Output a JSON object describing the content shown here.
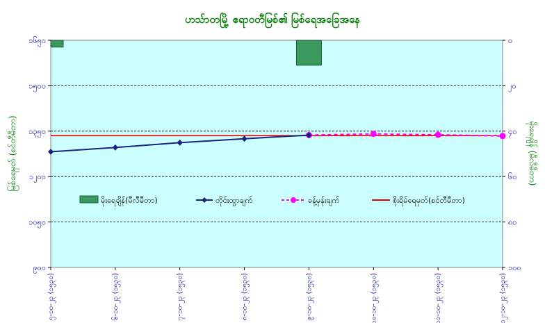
{
  "chart_data": {
    "type": "bar",
    "title": "ဟသ်ာတမြို့ ဧရာဝတီမြစ်၏ မြစ်ရေအခြေအနေ",
    "ylabel_left": "မြစ်ရေမှတ် (စင်တီမီတာ)",
    "ylabel_right": "မိုးရေချိန် (မီလီမီတာ)",
    "ylim_left": [
      900,
      1650
    ],
    "yticks_left": [
      "၉၀၀",
      "၁၀၅၀",
      "၁၂၀၀",
      "၁၃၅၀",
      "၁၅၀၀",
      "၁၆၅၀"
    ],
    "ylim_right": [
      0,
      100
    ],
    "yticks_right": [
      "၀",
      "၂၀",
      "၄၀",
      "၆၀",
      "၈၀",
      "၁၀၀"
    ],
    "y2_inverted": true,
    "categories": [
      "၅-၁၀-၂၃ (၁၅၃၀)",
      "၆-၁၀-၂၃ (၁၅၃၀)",
      "၇-၁၀-၂၃ (၁၅၃၀)",
      "၈-၁၀-၂၃ (၁၅၃၀)",
      "၉-၁၀-၂၃ (၁၅၃၀)",
      "၁၀-၁၀-၂၃ (၁၅၃၀)",
      "၁၁-၁၀-၂၃ (၁၅၃၀)",
      "၁၂-၁၀-၂၃ (၁၅၃၀)"
    ],
    "legend": {
      "rainfall": "မိုးရေချိန်(မီလီမီတာ)",
      "observed": "တိုင်းထွာချက်",
      "forecast": "ခန့်မှန်းချက်",
      "danger": "စိုးရိမ်ရေမှတ်(စင်တီမီတာ)"
    },
    "legend_position": "center",
    "grid": true,
    "series": [
      {
        "name": "မိုးရေချိန်(မီလီမီတာ)",
        "kind": "bar",
        "axis": "right",
        "color": "#3a9a5e",
        "values": [
          3,
          0,
          0,
          0,
          11,
          0,
          0,
          0
        ]
      },
      {
        "name": "တိုင်းထွာချက်",
        "kind": "line",
        "axis": "left",
        "color": "#1a237e",
        "values": [
          1282,
          1296,
          1312,
          1325,
          1337,
          null,
          null,
          null
        ]
      },
      {
        "name": "ခန့်မှန်းချက်",
        "kind": "line-dashed",
        "axis": "left",
        "color": "#ff00ff",
        "values": [
          null,
          null,
          null,
          null,
          1337,
          1341,
          1338,
          1334
        ]
      },
      {
        "name": "စိုးရိမ်ရေမှတ်(စင်တီမီတာ)",
        "kind": "line",
        "axis": "left",
        "color": "#e00000",
        "values": [
          1335,
          1335,
          1335,
          1335,
          1335,
          1335,
          1335,
          1335
        ]
      }
    ],
    "colors": {
      "plot_bg": "#ccffff",
      "axis_text": "#0000a0",
      "title": "#008000"
    }
  }
}
